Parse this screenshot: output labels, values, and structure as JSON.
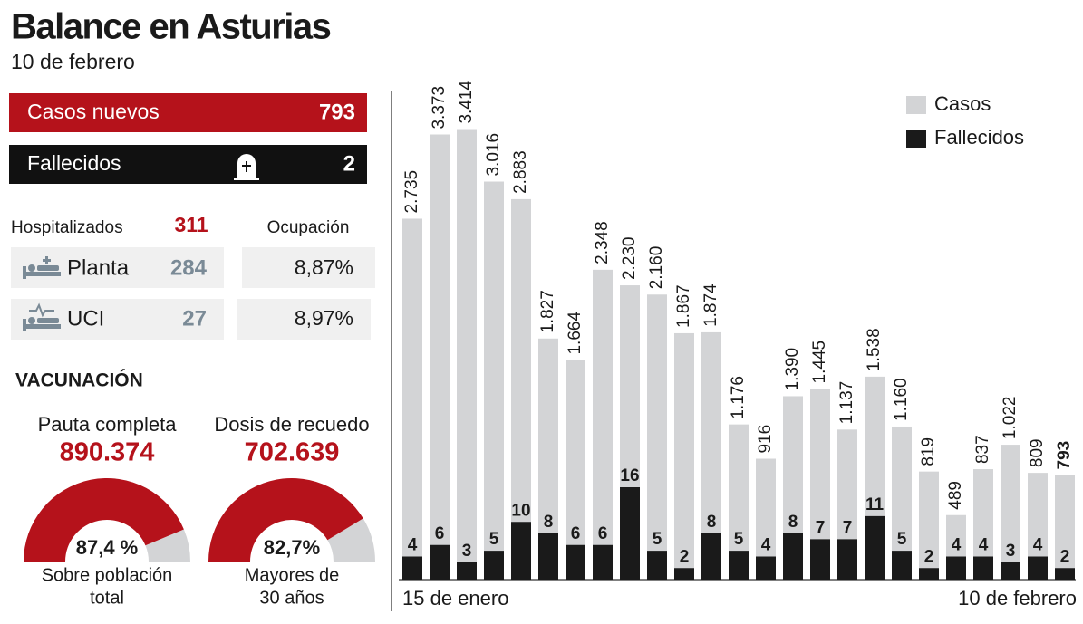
{
  "header": {
    "title": "Balance en Asturias",
    "subtitle": "10 de febrero"
  },
  "summary": {
    "cases": {
      "label": "Casos nuevos",
      "value": "793"
    },
    "deaths": {
      "label": "Fallecidos",
      "value": "2"
    },
    "hospital": {
      "label": "Hospitalizados",
      "value": "311",
      "occupancy_label": "Ocupación",
      "rows": [
        {
          "label": "Planta",
          "value": "284",
          "occupancy": "8,87%"
        },
        {
          "label": "UCI",
          "value": "27",
          "occupancy": "8,97%"
        }
      ]
    }
  },
  "vaccination": {
    "title": "VACUNACIÓN",
    "gauges": [
      {
        "title": "Pauta completa",
        "total": "890.374",
        "value": 87.4,
        "label": "87,4 %",
        "scale": [
          0,
          100
        ],
        "caption": [
          "Sobre población",
          "total"
        ]
      },
      {
        "title": "Dosis de recuedo",
        "total": "702.639",
        "value": 82.7,
        "label": "82,7%",
        "scale": [
          0,
          100
        ],
        "caption": [
          "Mayores de",
          "30 años"
        ]
      }
    ]
  },
  "chart_data": {
    "type": "bar",
    "categories": [
      "15 de enero",
      null,
      null,
      null,
      null,
      null,
      null,
      null,
      null,
      null,
      null,
      null,
      null,
      null,
      null,
      null,
      null,
      null,
      null,
      null,
      null,
      null,
      null,
      null,
      "10 de febrero"
    ],
    "series": [
      {
        "name": "Casos",
        "color": "#d3d4d6",
        "values": [
          2735,
          3373,
          3414,
          3016,
          2883,
          1827,
          1664,
          2348,
          2230,
          2160,
          1867,
          1874,
          1176,
          916,
          1390,
          1445,
          1137,
          1538,
          1160,
          819,
          489,
          837,
          1022,
          809,
          793
        ],
        "value_labels": [
          "2.735",
          "3.373",
          "3.414",
          "3.016",
          "2.883",
          "1.827",
          "1.664",
          "2.348",
          "2.230",
          "2.160",
          "1.867",
          "1.874",
          "1.176",
          "916",
          "1.390",
          "1.445",
          "1.137",
          "1.538",
          "1.160",
          "819",
          "489",
          "837",
          "1.022",
          "809",
          "793"
        ]
      },
      {
        "name": "Fallecidos",
        "color": "#1a1a1a",
        "axis": "y2",
        "values": [
          4,
          6,
          3,
          5,
          10,
          8,
          6,
          6,
          16,
          5,
          2,
          8,
          5,
          4,
          8,
          7,
          7,
          11,
          5,
          2,
          4,
          4,
          3,
          4,
          2
        ]
      }
    ],
    "ylim": [
      0,
      3500
    ],
    "y2lim": [
      0,
      80
    ],
    "legend": "top-right"
  }
}
